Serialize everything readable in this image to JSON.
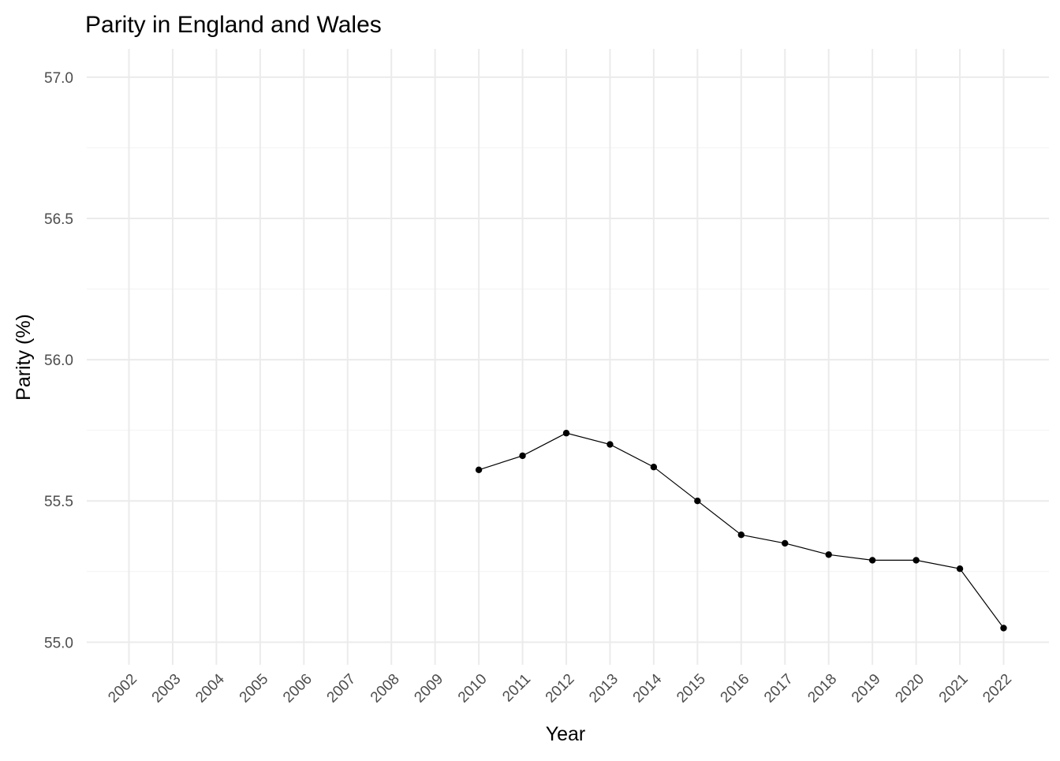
{
  "chart_data": {
    "type": "line",
    "title": "Parity in England and Wales",
    "xlabel": "Year",
    "ylabel": "Parity (%)",
    "x_categories": [
      "2002",
      "2003",
      "2004",
      "2005",
      "2006",
      "2007",
      "2008",
      "2009",
      "2010",
      "2011",
      "2012",
      "2013",
      "2014",
      "2015",
      "2016",
      "2017",
      "2018",
      "2019",
      "2020",
      "2021",
      "2022"
    ],
    "series": [
      {
        "x": [
          "2010",
          "2011",
          "2012",
          "2013",
          "2014",
          "2015",
          "2016",
          "2017",
          "2018",
          "2019",
          "2020",
          "2021",
          "2022"
        ],
        "y": [
          55.61,
          55.66,
          55.74,
          55.7,
          55.62,
          55.5,
          55.38,
          55.35,
          55.31,
          55.29,
          55.29,
          55.26,
          55.05
        ]
      }
    ],
    "ylim": [
      54.92,
      57.1
    ],
    "y_ticks": [
      {
        "value": 55.0,
        "label": "55.0"
      },
      {
        "value": 55.5,
        "label": "55.5"
      },
      {
        "value": 56.0,
        "label": "56.0"
      },
      {
        "value": 56.5,
        "label": "56.5"
      },
      {
        "value": 57.0,
        "label": "57.0"
      }
    ],
    "y_minor_ticks": [
      55.25,
      55.75,
      56.25,
      56.75
    ],
    "grid": true,
    "legend": "none",
    "colors": {
      "line": "#000000",
      "point": "#000000",
      "grid_major": "#ebebeb",
      "grid_minor": "#f2f2f2"
    }
  }
}
